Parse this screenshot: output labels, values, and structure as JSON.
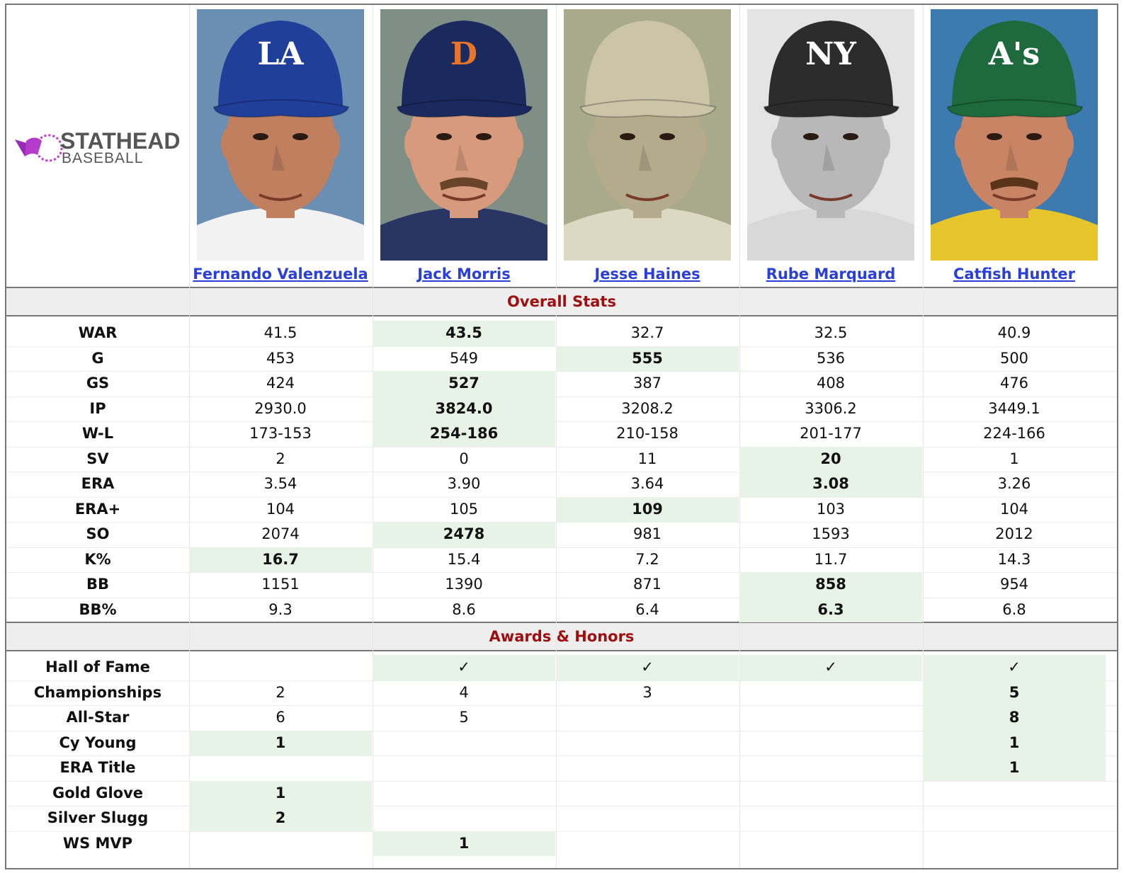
{
  "brand": {
    "line1": "STATHEAD",
    "line2": "BASEBALL"
  },
  "players": [
    {
      "name": "Fernando Valenzuela",
      "cap_letters": "LA",
      "cap_color": "#1f3f9a",
      "letter_color": "#ffffff",
      "bg": "#6b8fb3",
      "skin": "#c08060",
      "hair": "#1e140c",
      "shirt": "#f2f2f2",
      "mustache": false
    },
    {
      "name": "Jack Morris",
      "cap_letters": "D",
      "cap_color": "#1a2a5e",
      "letter_color": "#e8742a",
      "bg": "#7f8f86",
      "skin": "#d79a7c",
      "hair": "#6a4428",
      "shirt": "#2a3564",
      "mustache": true
    },
    {
      "name": "Jesse Haines",
      "cap_letters": "",
      "cap_color": "#cbc4a6",
      "letter_color": "#333333",
      "bg": "#a9a98c",
      "skin": "#b3ab8c",
      "hair": "#6a6450",
      "shirt": "#ddd8c2",
      "mustache": false
    },
    {
      "name": "Rube Marquard",
      "cap_letters": "NY",
      "cap_color": "#2c2c2c",
      "letter_color": "#ffffff",
      "bg": "#e4e4e4",
      "skin": "#b8b8b8",
      "hair": "#3a3a3a",
      "shirt": "#d8d8d8",
      "mustache": false
    },
    {
      "name": "Catfish Hunter",
      "cap_letters": "A's",
      "cap_color": "#1f6a3c",
      "letter_color": "#ffffff",
      "bg": "#3d7ab0",
      "skin": "#c98466",
      "hair": "#5a3418",
      "shirt": "#e6c52c",
      "mustache": true
    }
  ],
  "sections": {
    "overall": "Overall Stats",
    "awards": "Awards & Honors"
  },
  "overall_rows": [
    {
      "label": "WAR",
      "values": [
        "41.5",
        "43.5",
        "32.7",
        "32.5",
        "40.9"
      ],
      "best": [
        1
      ]
    },
    {
      "label": "G",
      "values": [
        "453",
        "549",
        "555",
        "536",
        "500"
      ],
      "best": [
        2
      ]
    },
    {
      "label": "GS",
      "values": [
        "424",
        "527",
        "387",
        "408",
        "476"
      ],
      "best": [
        1
      ]
    },
    {
      "label": "IP",
      "values": [
        "2930.0",
        "3824.0",
        "3208.2",
        "3306.2",
        "3449.1"
      ],
      "best": [
        1
      ]
    },
    {
      "label": "W-L",
      "values": [
        "173-153",
        "254-186",
        "210-158",
        "201-177",
        "224-166"
      ],
      "best": [
        1
      ]
    },
    {
      "label": "SV",
      "values": [
        "2",
        "0",
        "11",
        "20",
        "1"
      ],
      "best": [
        3
      ]
    },
    {
      "label": "ERA",
      "values": [
        "3.54",
        "3.90",
        "3.64",
        "3.08",
        "3.26"
      ],
      "best": [
        3
      ]
    },
    {
      "label": "ERA+",
      "values": [
        "104",
        "105",
        "109",
        "103",
        "104"
      ],
      "best": [
        2
      ]
    },
    {
      "label": "SO",
      "values": [
        "2074",
        "2478",
        "981",
        "1593",
        "2012"
      ],
      "best": [
        1
      ]
    },
    {
      "label": "K%",
      "values": [
        "16.7",
        "15.4",
        "7.2",
        "11.7",
        "14.3"
      ],
      "best": [
        0
      ]
    },
    {
      "label": "BB",
      "values": [
        "1151",
        "1390",
        "871",
        "858",
        "954"
      ],
      "best": [
        3
      ]
    },
    {
      "label": "BB%",
      "values": [
        "9.3",
        "8.6",
        "6.4",
        "6.3",
        "6.8"
      ],
      "best": [
        3
      ]
    }
  ],
  "award_rows": [
    {
      "label": "Hall of Fame",
      "values": [
        "",
        "✓",
        "✓",
        "✓",
        "✓"
      ],
      "best": [
        1,
        2,
        3,
        4
      ]
    },
    {
      "label": "Championships",
      "values": [
        "2",
        "4",
        "3",
        "",
        "5"
      ],
      "best": [
        4
      ]
    },
    {
      "label": "All-Star",
      "values": [
        "6",
        "5",
        "",
        "",
        "8"
      ],
      "best": [
        4
      ]
    },
    {
      "label": "Cy Young",
      "values": [
        "1",
        "",
        "",
        "",
        "1"
      ],
      "best": [
        0,
        4
      ]
    },
    {
      "label": "ERA Title",
      "values": [
        "",
        "",
        "",
        "",
        "1"
      ],
      "best": [
        4
      ]
    },
    {
      "label": "Gold Glove",
      "values": [
        "1",
        "",
        "",
        "",
        ""
      ],
      "best": [
        0
      ]
    },
    {
      "label": "Silver Slugg",
      "values": [
        "2",
        "",
        "",
        "",
        ""
      ],
      "best": [
        0
      ]
    },
    {
      "label": "WS MVP",
      "values": [
        "",
        "1",
        "",
        "",
        ""
      ],
      "best": [
        1
      ]
    }
  ]
}
